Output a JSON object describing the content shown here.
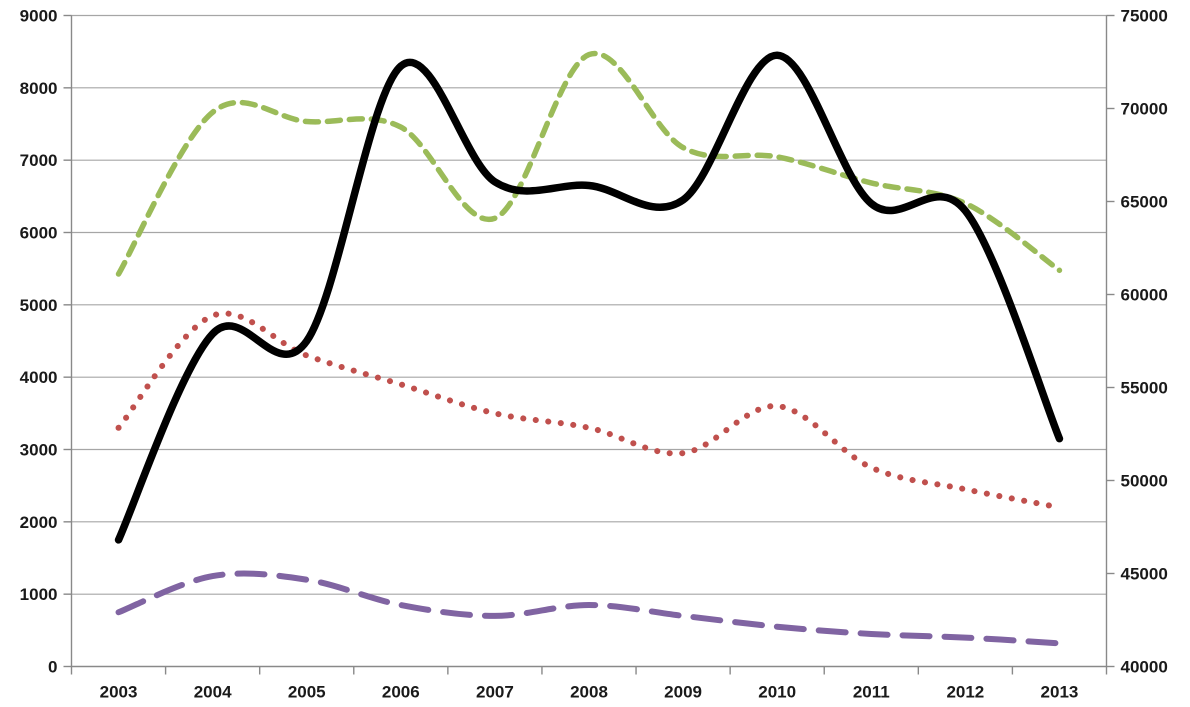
{
  "chart_data": {
    "type": "line",
    "title": "",
    "subtitle": "",
    "xlabel": "",
    "ylabel": "",
    "legend": false,
    "grid": true,
    "smoothed": true,
    "categories": [
      "2003",
      "2004",
      "2005",
      "2006",
      "2007",
      "2008",
      "2009",
      "2010",
      "2011",
      "2012",
      "2013"
    ],
    "series": [
      {
        "name": "green-dashed-series",
        "axis": "right",
        "color": "#9BBB59",
        "line_style": "dashed",
        "stroke_width": 5.5,
        "values": [
          61100,
          69800,
          69300,
          69000,
          64100,
          72900,
          67900,
          67400,
          66000,
          64900,
          61300
        ]
      },
      {
        "name": "red-dotted-series",
        "axis": "left",
        "color": "#C0504D",
        "line_style": "dotted",
        "stroke_width": 6,
        "values": [
          3300,
          4850,
          4300,
          3900,
          3500,
          3300,
          2950,
          3600,
          2750,
          2450,
          2200
        ]
      },
      {
        "name": "purple-long-dash-series",
        "axis": "left",
        "color": "#8064A2",
        "line_style": "long-dash",
        "stroke_width": 6,
        "values": [
          750,
          1250,
          1200,
          850,
          700,
          850,
          700,
          550,
          450,
          400,
          320
        ]
      },
      {
        "name": "black-solid-series",
        "axis": "left",
        "color": "#000000",
        "line_style": "solid",
        "stroke_width": 7.5,
        "values": [
          1750,
          4600,
          4500,
          8300,
          6700,
          6650,
          6450,
          8450,
          6400,
          6300,
          3150
        ]
      }
    ],
    "left_axis": {
      "min": 0,
      "max": 9000,
      "step": 1000,
      "tick_labels": [
        "0",
        "1000",
        "2000",
        "3000",
        "4000",
        "5000",
        "6000",
        "7000",
        "8000",
        "9000"
      ]
    },
    "right_axis": {
      "min": 40000,
      "max": 75000,
      "step": 5000,
      "tick_labels": [
        "40000",
        "45000",
        "50000",
        "55000",
        "60000",
        "65000",
        "70000",
        "75000"
      ]
    },
    "colors": {
      "gridline": "#A6A6A6",
      "axis_line": "#898989",
      "tick_label": "#1a1a1a",
      "background": "#ffffff"
    }
  }
}
